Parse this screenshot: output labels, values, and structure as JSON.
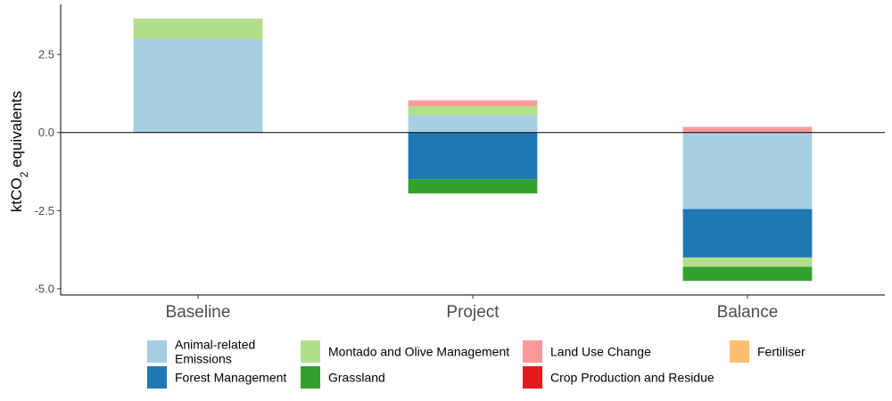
{
  "chart_data": {
    "type": "bar",
    "stacked": true,
    "categories": [
      "Baseline",
      "Project",
      "Balance"
    ],
    "ylabel": "ktCO2 equivalents",
    "ylabel_parts": {
      "pre": "ktCO",
      "sub": "2",
      "post": " equivalents"
    },
    "ylim": [
      -5.2,
      4.1
    ],
    "yticks": [
      -5.0,
      -2.5,
      0.0,
      2.5
    ],
    "ytick_labels": [
      "-5.0",
      "-2.5",
      "0.0",
      "2.5"
    ],
    "zero_line": true,
    "grid": false,
    "legend_position": "bottom",
    "stack_order": [
      "Animal-related Emissions",
      "Forest Management",
      "Montado and Olive Management",
      "Grassland",
      "Land Use Change",
      "Crop Production and Residue",
      "Fertiliser"
    ],
    "series": [
      {
        "name": "Animal-related Emissions",
        "color": "#a6cee3",
        "values": [
          3.0,
          0.55,
          -2.45
        ]
      },
      {
        "name": "Forest Management",
        "color": "#1f78b4",
        "values": [
          0.0,
          -1.5,
          -1.55
        ]
      },
      {
        "name": "Montado and Olive Management",
        "color": "#b2df8a",
        "values": [
          0.65,
          0.3,
          -0.3
        ]
      },
      {
        "name": "Grassland",
        "color": "#33a02c",
        "values": [
          0.0,
          -0.45,
          -0.45
        ]
      },
      {
        "name": "Land Use Change",
        "color": "#fb9a99",
        "values": [
          0.0,
          0.18,
          0.18
        ]
      },
      {
        "name": "Crop Production and Residue",
        "color": "#e31a1c",
        "values": [
          0.0,
          0.0,
          0.0
        ]
      },
      {
        "name": "Fertiliser",
        "color": "#fdbf6f",
        "values": [
          0.0,
          0.0,
          0.0
        ]
      }
    ],
    "legend": [
      {
        "label": "Animal-related Emissions",
        "lines": [
          "Animal-related",
          "Emissions"
        ],
        "color": "#a6cee3",
        "icon": "legend-swatch"
      },
      {
        "label": "Forest Management",
        "lines": [
          "Forest Management"
        ],
        "color": "#1f78b4",
        "icon": "legend-swatch"
      },
      {
        "label": "Montado and Olive Management",
        "lines": [
          "Montado and Olive Management"
        ],
        "color": "#b2df8a",
        "icon": "legend-swatch"
      },
      {
        "label": "Grassland",
        "lines": [
          "Grassland"
        ],
        "color": "#33a02c",
        "icon": "legend-swatch"
      },
      {
        "label": "Land Use Change",
        "lines": [
          "Land Use Change"
        ],
        "color": "#fb9a99",
        "icon": "legend-swatch"
      },
      {
        "label": "Crop Production and Residue",
        "lines": [
          "Crop Production and Residue"
        ],
        "color": "#e31a1c",
        "icon": "legend-swatch"
      },
      {
        "label": "Fertiliser",
        "lines": [
          "Fertiliser"
        ],
        "color": "#fdbf6f",
        "icon": "legend-swatch"
      }
    ]
  }
}
